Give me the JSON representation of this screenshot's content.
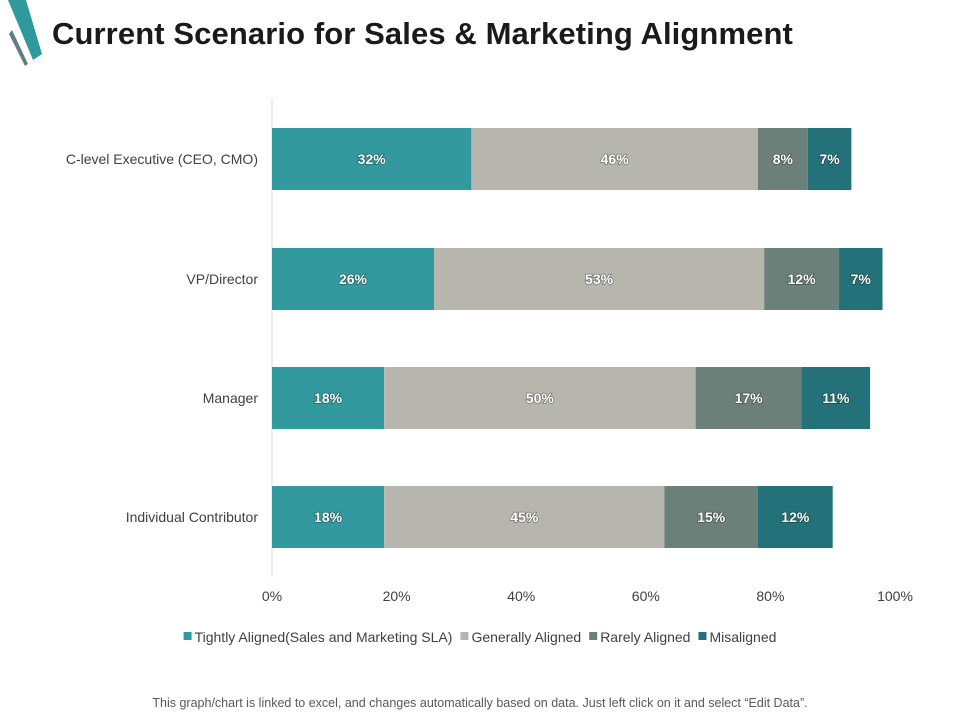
{
  "title": "Current Scenario for Sales & Marketing Alignment",
  "footer": "This graph/chart is linked to excel, and changes automatically based on data. Just left click on it and select “Edit Data”.",
  "colors": {
    "accent": "#2E9A9E",
    "accent_dark": "#5E7E80",
    "axis": "#D9D9D9",
    "label_text": "#404040",
    "bar_label": "#FFFFFF"
  },
  "chart_data": {
    "type": "bar",
    "orientation": "horizontal",
    "stacked": true,
    "title": "",
    "xlabel": "",
    "ylabel": "",
    "xlim": [
      0,
      100
    ],
    "x_ticks": [
      0,
      20,
      40,
      60,
      80,
      100
    ],
    "x_tick_labels": [
      "0%",
      "20%",
      "40%",
      "60%",
      "80%",
      "100%"
    ],
    "grid": false,
    "legend_position": "bottom",
    "categories": [
      "C-level Executive (CEO, CMO)",
      "VP/Director",
      "Manager",
      "Individual Contributor"
    ],
    "series": [
      {
        "name": "Tightly Aligned(Sales and Marketing SLA)",
        "color": "#32999E",
        "values": [
          32,
          26,
          18,
          18
        ],
        "labels": [
          "32%",
          "26%",
          "18%",
          "18%"
        ]
      },
      {
        "name": "Generally Aligned",
        "color": "#B6B6AE",
        "values": [
          46,
          53,
          50,
          45
        ],
        "labels": [
          "46%",
          "53%",
          "50%",
          "45%"
        ]
      },
      {
        "name": "Rarely Aligned",
        "color": "#6B8079",
        "values": [
          8,
          12,
          17,
          15
        ],
        "labels": [
          "8%",
          "12%",
          "17%",
          "15%"
        ]
      },
      {
        "name": "Misaligned",
        "color": "#23727A",
        "values": [
          7,
          7,
          11,
          12
        ],
        "labels": [
          "7%",
          "7%",
          "11%",
          "12%"
        ]
      }
    ]
  }
}
